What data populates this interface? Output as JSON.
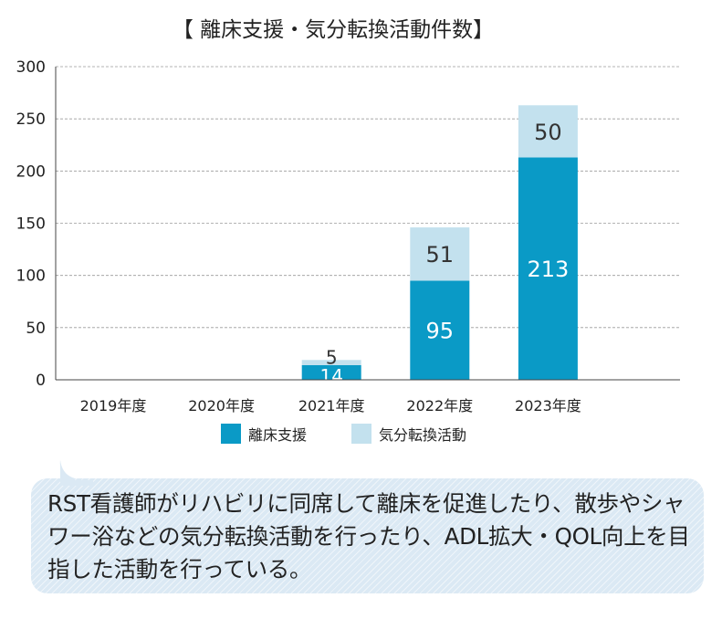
{
  "chart_data": {
    "type": "bar",
    "stacked": true,
    "title": "【 離床支援・気分転換活動件数】",
    "categories": [
      "2019年度",
      "2020年度",
      "2021年度",
      "2022年度",
      "2023年度"
    ],
    "series": [
      {
        "name": "離床支援",
        "values": [
          0,
          0,
          14,
          95,
          213
        ],
        "color": "#0a9ac6",
        "label_color": "#ffffff"
      },
      {
        "name": "気分転換活動",
        "values": [
          0,
          0,
          5,
          51,
          50
        ],
        "color": "#c3e1ee",
        "label_color": "#333333"
      }
    ],
    "ylim": [
      0,
      300
    ],
    "yticks": [
      0,
      50,
      100,
      150,
      200,
      250,
      300
    ],
    "grid": true,
    "legend_position": "bottom"
  },
  "note": {
    "text": "RST看護師がリハビリに同席して離床を促進したり、散歩やシャワー浴などの気分転換活動を行ったり、ADL拡大・QOL向上を目指した活動を行っている。"
  }
}
